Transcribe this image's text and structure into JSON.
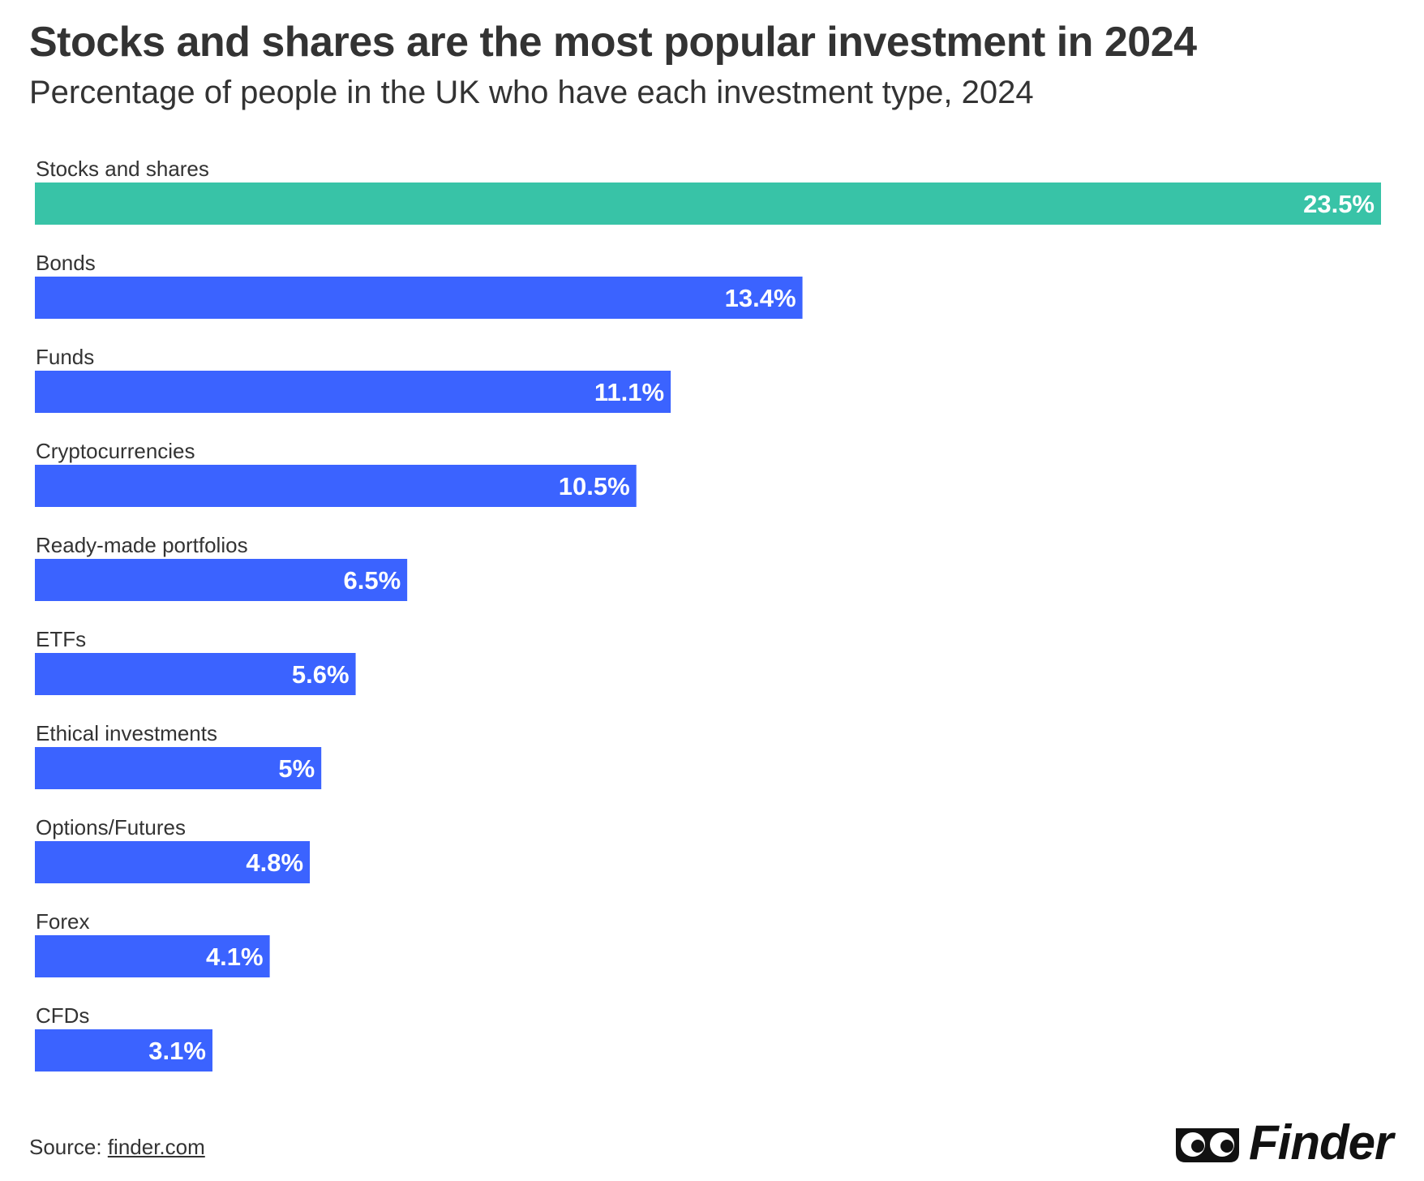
{
  "chart_data": {
    "type": "bar",
    "orientation": "horizontal",
    "title": "Stocks and shares are the most popular investment in 2024",
    "subtitle": "Percentage of people in the UK who have each investment type, 2024",
    "categories": [
      "Stocks and shares",
      "Bonds",
      "Funds",
      "Cryptocurrencies",
      "Ready-made portfolios",
      "ETFs",
      "Ethical investments",
      "Options/Futures",
      "Forex",
      "CFDs"
    ],
    "values": [
      23.5,
      13.4,
      11.1,
      10.5,
      6.5,
      5.6,
      5,
      4.8,
      4.1,
      3.1
    ],
    "value_labels": [
      "23.5%",
      "13.4%",
      "11.1%",
      "10.5%",
      "6.5%",
      "5.6%",
      "5%",
      "4.8%",
      "4.1%",
      "3.1%"
    ],
    "highlight_index": 0,
    "colors": {
      "highlight": "#38C3A7",
      "default": "#3B63FF",
      "text": "#333333",
      "value_text": "#FFFFFF"
    },
    "xlim": [
      0,
      23.5
    ],
    "grid": false,
    "legend": "none"
  },
  "footer": {
    "source_prefix": "Source: ",
    "source_link": "finder.com"
  },
  "logo": {
    "text": "Finder",
    "icon": "eyes-icon"
  }
}
